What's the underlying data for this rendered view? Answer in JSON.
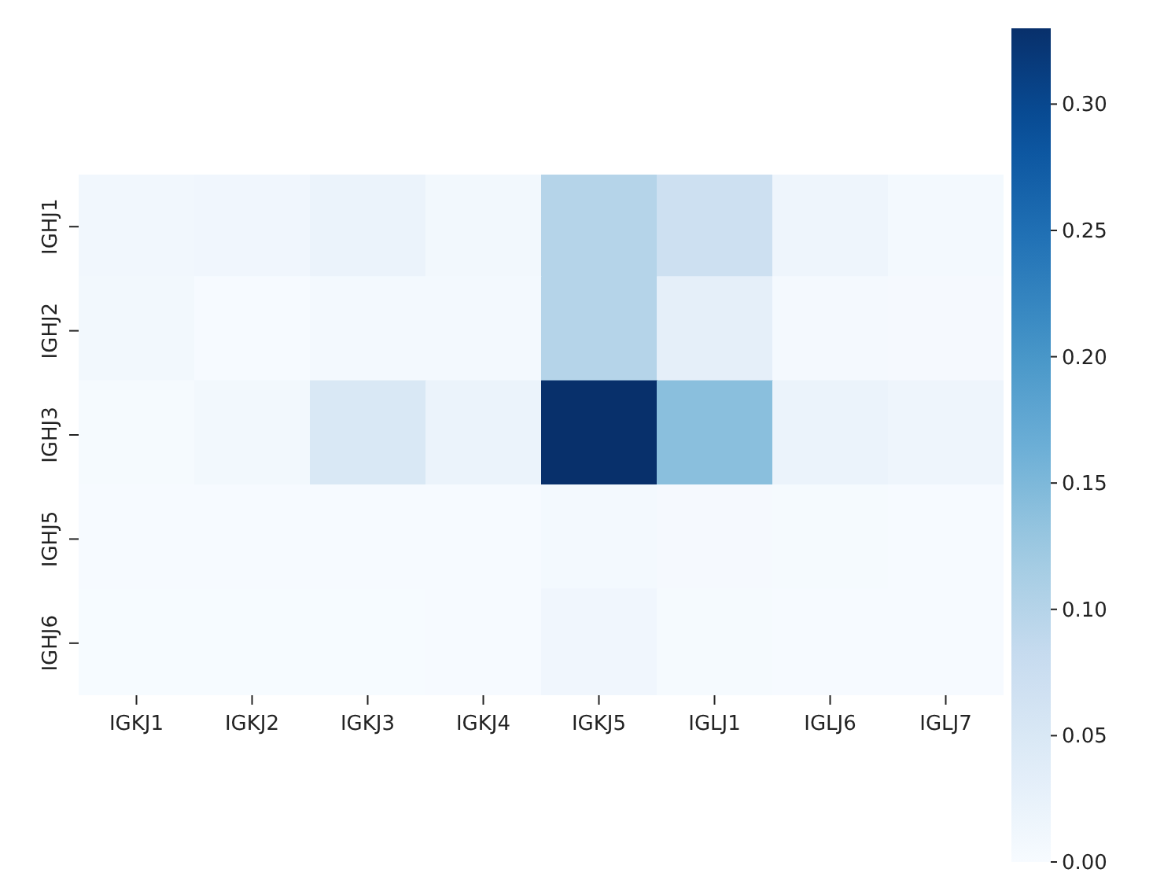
{
  "chart_data": {
    "type": "heatmap",
    "categories": [
      "IGKJ1",
      "IGKJ2",
      "IGKJ3",
      "IGKJ4",
      "IGKJ5",
      "IGLJ1",
      "IGLJ6",
      "IGLJ7"
    ],
    "y_categories": [
      "IGHJ1",
      "IGHJ2",
      "IGHJ3",
      "IGHJ5",
      "IGHJ6"
    ],
    "cells": [
      [
        0.01,
        0.012,
        0.02,
        0.008,
        0.1,
        0.07,
        0.015,
        0.006
      ],
      [
        0.008,
        0.002,
        0.006,
        0.006,
        0.1,
        0.03,
        0.005,
        0.004
      ],
      [
        0.003,
        0.008,
        0.05,
        0.02,
        0.33,
        0.14,
        0.02,
        0.015
      ],
      [
        0.002,
        0.002,
        0.002,
        0.002,
        0.006,
        0.004,
        0.003,
        0.002
      ],
      [
        0.001,
        0.001,
        0.001,
        0.002,
        0.012,
        0.003,
        0.002,
        0.002
      ]
    ],
    "clim": [
      0,
      0.33
    ],
    "cticks": [
      {
        "value": 0,
        "label": "0.00"
      },
      {
        "value": 0.05,
        "label": "0.05"
      },
      {
        "value": 0.1,
        "label": "0.10"
      },
      {
        "value": 0.15,
        "label": "0.15"
      },
      {
        "value": 0.2,
        "label": "0.20"
      },
      {
        "value": 0.25,
        "label": "0.25"
      },
      {
        "value": 0.3,
        "label": "0.30"
      }
    ]
  }
}
